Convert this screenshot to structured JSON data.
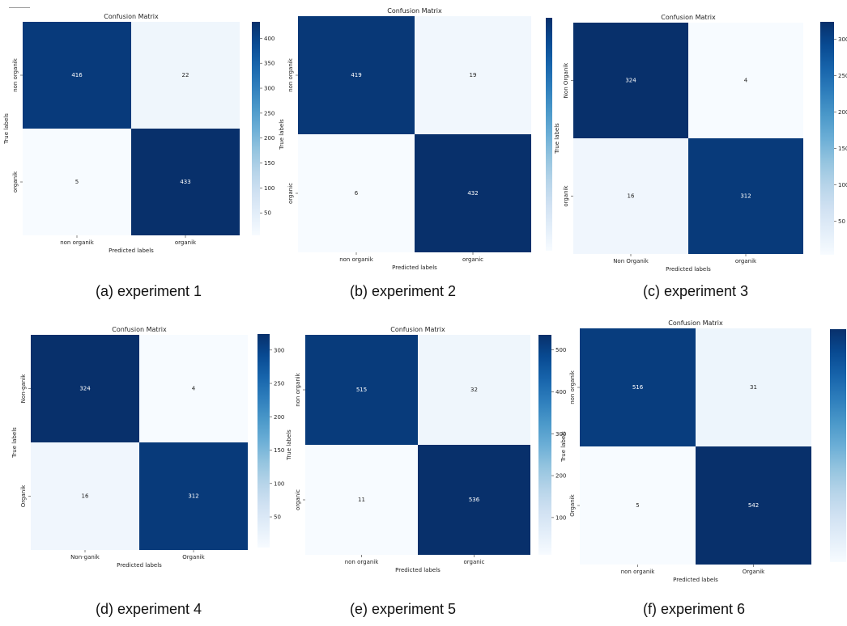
{
  "chart_data": [
    {
      "type": "heatmap",
      "title": "Confusion Matrix",
      "xlabel": "Predicted labels",
      "ylabel": "True labels",
      "x_categories": [
        "non organik",
        "organik"
      ],
      "y_categories": [
        "non organik",
        "organik"
      ],
      "values": [
        [
          416,
          22
        ],
        [
          5,
          433
        ]
      ],
      "colorbar_ticks": [
        50,
        100,
        150,
        200,
        250,
        300,
        350,
        400
      ],
      "colorscale": "Blues",
      "caption": "(a) experiment 1"
    },
    {
      "type": "heatmap",
      "title": "Confusion Matrix",
      "xlabel": "Predicted labels",
      "ylabel": "True labels",
      "x_categories": [
        "non organik",
        "organic"
      ],
      "y_categories": [
        "non organik",
        "organic"
      ],
      "values": [
        [
          419,
          19
        ],
        [
          6,
          432
        ]
      ],
      "colorbar_ticks": [],
      "colorscale": "Blues",
      "caption": "(b) experiment 2"
    },
    {
      "type": "heatmap",
      "title": "Confusion Matrix",
      "xlabel": "Predicted labels",
      "ylabel": "True labels",
      "x_categories": [
        "Non Organik",
        "organik"
      ],
      "y_categories": [
        "Non Organik",
        "organik"
      ],
      "values": [
        [
          324,
          4
        ],
        [
          16,
          312
        ]
      ],
      "colorbar_ticks": [
        50,
        100,
        150,
        200,
        250,
        300
      ],
      "colorscale": "Blues",
      "caption": "(c) experiment 3"
    },
    {
      "type": "heatmap",
      "title": "Confusion Matrix",
      "xlabel": "Predicted labels",
      "ylabel": "True labels",
      "x_categories": [
        "Non-ganik",
        "Organik"
      ],
      "y_categories": [
        "Non-ganik",
        "Organik"
      ],
      "values": [
        [
          324,
          4
        ],
        [
          16,
          312
        ]
      ],
      "colorbar_ticks": [
        50,
        100,
        150,
        200,
        250,
        300
      ],
      "colorscale": "Blues",
      "caption": "(d) experiment 4"
    },
    {
      "type": "heatmap",
      "title": "Confusion Matrix",
      "xlabel": "Predicted labels",
      "ylabel": "True labels",
      "x_categories": [
        "non organik",
        "organic"
      ],
      "y_categories": [
        "non organik",
        "organic"
      ],
      "values": [
        [
          515,
          32
        ],
        [
          11,
          536
        ]
      ],
      "colorbar_ticks": [
        100,
        200,
        300,
        400,
        500
      ],
      "colorscale": "Blues",
      "caption": "(e) experiment 5"
    },
    {
      "type": "heatmap",
      "title": "Confusion Matrix",
      "xlabel": "Predicted labels",
      "ylabel": "True labels",
      "x_categories": [
        "non organik",
        "Organik"
      ],
      "y_categories": [
        "non organik",
        "Organik"
      ],
      "values": [
        [
          516,
          31
        ],
        [
          5,
          542
        ]
      ],
      "colorbar_ticks": [],
      "colorscale": "Blues",
      "caption": "(f) experiment 6"
    }
  ]
}
